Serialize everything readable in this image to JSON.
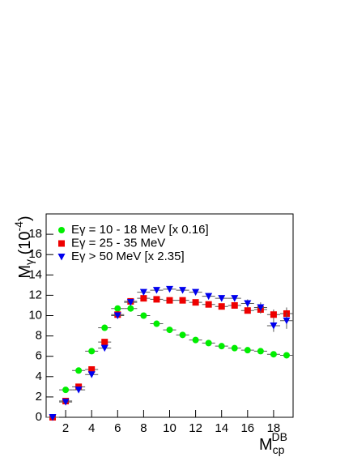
{
  "chart_data": {
    "type": "scatter",
    "x_label": {
      "base": "M",
      "sub": "cp",
      "sup": "DB"
    },
    "y_label": {
      "base": "M",
      "sub": "γ",
      "text": " (10",
      "sup": "-4",
      "end": ")"
    },
    "x": [
      1,
      2,
      3,
      4,
      5,
      6,
      7,
      8,
      9,
      10,
      11,
      12,
      13,
      14,
      15,
      16,
      17,
      18,
      19
    ],
    "xerr": 0.5,
    "xlim": [
      0.5,
      19.5
    ],
    "ylim": [
      0,
      20
    ],
    "xticks": [
      2,
      4,
      6,
      8,
      10,
      12,
      14,
      16,
      18
    ],
    "yticks": [
      0,
      2,
      4,
      6,
      8,
      10,
      12,
      14,
      16,
      18
    ],
    "legend": "top-left",
    "series": [
      {
        "name": "Eγ = 10 - 18 MeV [x 0.16]",
        "color": "#00ee00",
        "marker": "circle",
        "values": [
          0,
          2.7,
          4.6,
          6.5,
          8.8,
          10.7,
          10.7,
          10.0,
          9.2,
          8.6,
          8.1,
          7.6,
          7.3,
          7.0,
          6.8,
          6.6,
          6.5,
          6.2,
          6.1
        ],
        "errors": [
          0.1,
          0.1,
          0.1,
          0.1,
          0.1,
          0.1,
          0.1,
          0.1,
          0.1,
          0.1,
          0.1,
          0.1,
          0.1,
          0.1,
          0.1,
          0.1,
          0.1,
          0.1,
          0.1
        ]
      },
      {
        "name": "Eγ = 25 - 35 MeV",
        "color": "#ee0000",
        "marker": "square",
        "values": [
          0,
          1.6,
          3.0,
          4.7,
          7.4,
          10.1,
          11.4,
          11.7,
          11.6,
          11.5,
          11.5,
          11.3,
          11.1,
          10.9,
          11.0,
          10.5,
          10.6,
          10.1,
          10.2
        ],
        "errors": [
          0.1,
          0.2,
          0.2,
          0.2,
          0.2,
          0.2,
          0.2,
          0.2,
          0.2,
          0.2,
          0.2,
          0.2,
          0.2,
          0.2,
          0.3,
          0.3,
          0.4,
          0.5,
          0.6
        ]
      },
      {
        "name": "Eγ > 50 MeV  [x 2.35]",
        "color": "#0000ee",
        "marker": "triangle",
        "values": [
          0,
          1.5,
          2.7,
          4.2,
          6.8,
          10.0,
          11.3,
          12.3,
          12.5,
          12.6,
          12.5,
          12.3,
          11.9,
          11.7,
          11.7,
          11.2,
          10.8,
          9.0,
          9.5
        ],
        "errors": [
          0.1,
          0.2,
          0.2,
          0.2,
          0.2,
          0.2,
          0.2,
          0.2,
          0.2,
          0.2,
          0.2,
          0.2,
          0.3,
          0.3,
          0.3,
          0.4,
          0.5,
          0.6,
          0.8
        ]
      }
    ]
  }
}
